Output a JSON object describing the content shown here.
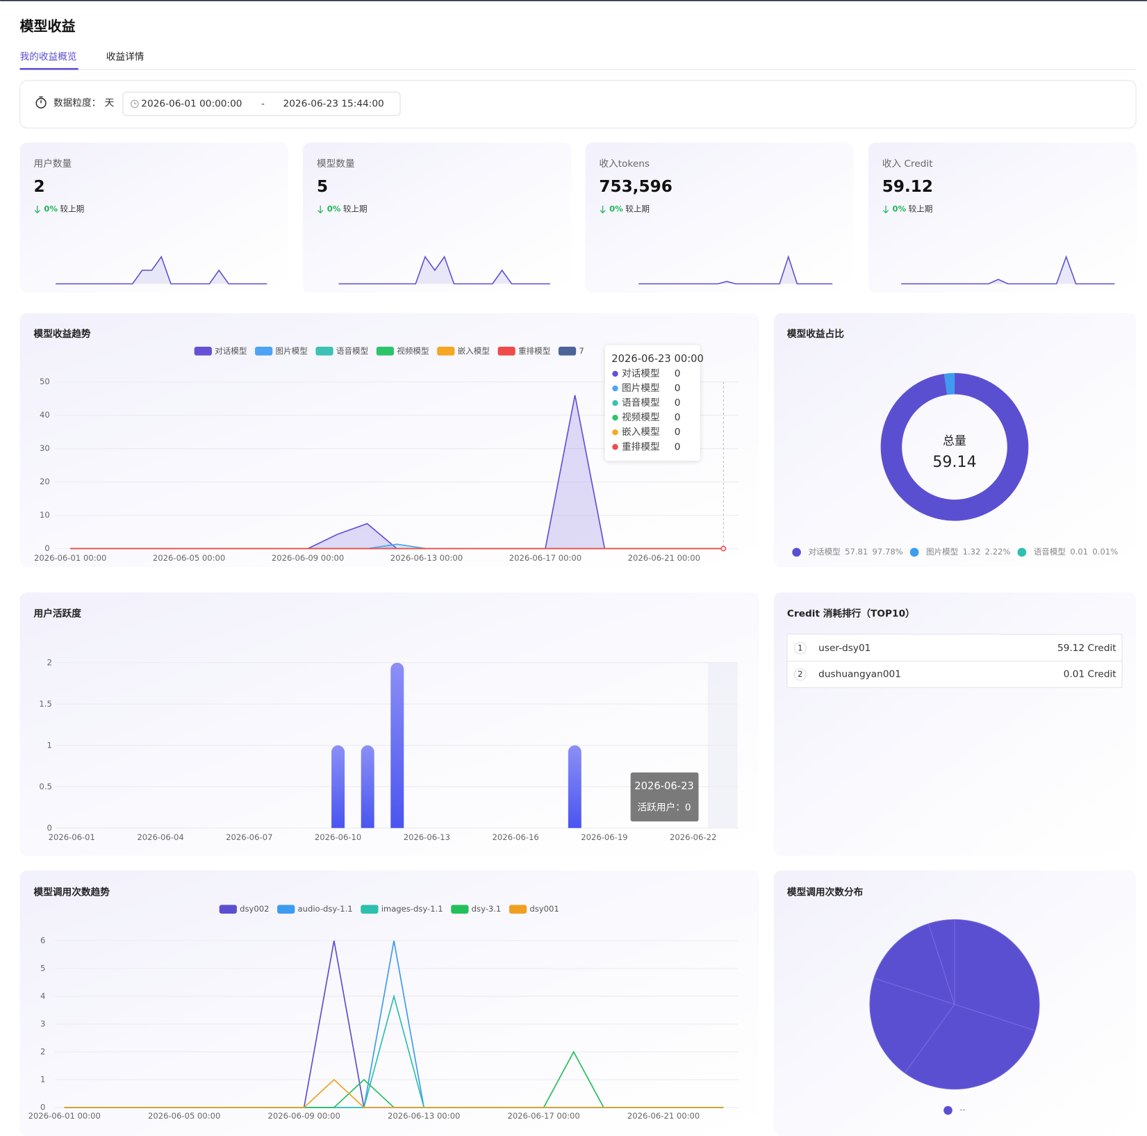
{
  "header": {
    "title": "模型收益",
    "tabs": [
      "我的收益概览",
      "收益详情"
    ]
  },
  "filter": {
    "label": "数据粒度：",
    "granularity": "天",
    "start": "2026-06-01 00:00:00",
    "separator": "-",
    "end": "2026-06-23 15:44:00"
  },
  "stats": [
    {
      "label": "用户数量",
      "value": "2",
      "change": "0%",
      "compare": "较上期"
    },
    {
      "label": "模型数量",
      "value": "5",
      "change": "0%",
      "compare": "较上期"
    },
    {
      "label": "收入tokens",
      "value": "753,596",
      "change": "0%",
      "compare": "较上期"
    },
    {
      "label": "收入 Credit",
      "value": "59.12",
      "change": "0%",
      "compare": "较上期"
    }
  ],
  "ranking": {
    "title": "Credit 消耗排行（TOP10）",
    "rows": [
      [
        "1",
        "user-dsy01",
        "59.12 Credit"
      ],
      [
        "2",
        "dushuangyan001",
        "0.01 Credit"
      ]
    ]
  },
  "chart_data": [
    {
      "type": "sparkline",
      "color": "#5b4fd1",
      "values": [
        0,
        0,
        0,
        0,
        0,
        0,
        0,
        0,
        0,
        1,
        1,
        2,
        0,
        0,
        0,
        0,
        0,
        1,
        0,
        0,
        0,
        0,
        0
      ]
    },
    {
      "type": "sparkline",
      "color": "#5b4fd1",
      "values": [
        0,
        0,
        0,
        0,
        0,
        0,
        0,
        0,
        0,
        2,
        1,
        2,
        0,
        0,
        0,
        0,
        0,
        1,
        0,
        0,
        0,
        0,
        0
      ]
    },
    {
      "type": "sparkline",
      "color": "#5b4fd1",
      "values": [
        0,
        0,
        0,
        0,
        0,
        0,
        0,
        0,
        0,
        0,
        60000,
        0,
        0,
        0,
        0,
        0,
        0,
        693596,
        0,
        0,
        0,
        0,
        0
      ]
    },
    {
      "type": "sparkline",
      "color": "#5b4fd1",
      "values": [
        0,
        0,
        0,
        0,
        0,
        0,
        0,
        0,
        0,
        0,
        7.5,
        0,
        0,
        0,
        0,
        0,
        0,
        46,
        0,
        0,
        0,
        0,
        0
      ]
    },
    {
      "type": "line",
      "title": "模型收益趋势",
      "area": true,
      "categories": [
        "2026-06-01 00:00",
        null,
        null,
        null,
        "2026-06-05 00:00",
        null,
        null,
        null,
        "2026-06-09 00:00",
        null,
        null,
        null,
        "2026-06-13 00:00",
        null,
        null,
        null,
        "2026-06-17 00:00",
        null,
        null,
        null,
        "2026-06-21 00:00",
        null,
        "2026-06-23 00:00"
      ],
      "series": [
        {
          "name": "对话模型",
          "color": "#6451d6",
          "values": [
            0,
            0,
            0,
            0,
            0,
            0,
            0,
            0,
            0,
            4.3,
            7.5,
            0,
            0,
            0,
            0,
            0,
            0,
            46.01,
            0,
            0,
            0,
            0,
            0
          ]
        },
        {
          "name": "图片模型",
          "color": "#4ea3f5",
          "values": [
            0,
            0,
            0,
            0,
            0,
            0,
            0,
            0,
            0,
            0,
            0,
            1.32,
            0,
            0,
            0,
            0,
            0,
            0,
            0,
            0,
            0,
            0,
            0
          ]
        },
        {
          "name": "语音模型",
          "color": "#3cc2b4",
          "values": [
            0,
            0,
            0,
            0,
            0,
            0,
            0,
            0,
            0,
            0,
            0.01,
            0,
            0,
            0,
            0,
            0,
            0,
            0,
            0,
            0,
            0,
            0,
            0
          ]
        },
        {
          "name": "视频模型",
          "color": "#2cc46a",
          "values": [
            0,
            0,
            0,
            0,
            0,
            0,
            0,
            0,
            0,
            0,
            0,
            0,
            0,
            0,
            0,
            0,
            0,
            0,
            0,
            0,
            0,
            0,
            0
          ]
        },
        {
          "name": "嵌入模型",
          "color": "#f5a623",
          "values": [
            0,
            0,
            0,
            0,
            0,
            0,
            0,
            0,
            0,
            0,
            0,
            0,
            0,
            0,
            0,
            0,
            0,
            0,
            0,
            0,
            0,
            0,
            0
          ]
        },
        {
          "name": "重排模型",
          "color": "#ef4b4b",
          "values": [
            0,
            0,
            0,
            0,
            0,
            0,
            0,
            0,
            0,
            0,
            0,
            0,
            0,
            0,
            0,
            0,
            0,
            0,
            0,
            0,
            0,
            0,
            0
          ]
        },
        {
          "name": "7",
          "color": "#4b6598",
          "values": [
            null,
            null,
            null,
            null,
            null,
            null,
            null,
            null,
            null,
            null,
            null,
            null,
            null,
            null,
            null,
            null,
            null,
            null,
            null,
            null,
            null,
            null,
            null
          ]
        }
      ],
      "ylim": [
        0,
        50
      ],
      "yticks": [
        0,
        10,
        20,
        30,
        40,
        50
      ],
      "grid": true
    },
    {
      "type": "donut",
      "title": "模型收益占比",
      "total_label": "总量",
      "total": 59.14,
      "categories": [
        "对话模型",
        "图片模型",
        "语音模型"
      ],
      "values": [
        57.81,
        1.32,
        0.01
      ],
      "percents": [
        97.78,
        2.22,
        0.01
      ],
      "percent_labels": [
        "97.78%",
        "2.22%",
        "0.01%"
      ],
      "colors": [
        "#5b4fd1",
        "#3d9bf0",
        "#2fbfae"
      ]
    },
    {
      "type": "bar",
      "title": "用户活跃度",
      "categories": [
        "2026-06-01",
        null,
        null,
        "2026-06-04",
        null,
        null,
        "2026-06-07",
        null,
        null,
        "2026-06-10",
        null,
        null,
        "2026-06-13",
        null,
        null,
        "2026-06-16",
        null,
        null,
        "2026-06-19",
        null,
        null,
        "2026-06-22",
        "2026-06-23"
      ],
      "series": [
        {
          "name": "活跃用户",
          "color": "#5560f2",
          "values": [
            0,
            0,
            0,
            0,
            0,
            0,
            0,
            0,
            0,
            1,
            1,
            2,
            0,
            0,
            0,
            0,
            0,
            1,
            0,
            0,
            0,
            0,
            0
          ]
        }
      ],
      "tooltip_separator": "：",
      "ylim": [
        0,
        2
      ],
      "yticks": [
        0,
        0.5,
        1,
        1.5,
        2
      ],
      "grid": true
    },
    {
      "type": "line",
      "title": "模型调用次数趋势",
      "area": false,
      "categories": [
        "2026-06-01 00:00",
        null,
        null,
        null,
        "2026-06-05 00:00",
        null,
        null,
        null,
        "2026-06-09 00:00",
        null,
        null,
        null,
        "2026-06-13 00:00",
        null,
        null,
        null,
        "2026-06-17 00:00",
        null,
        null,
        null,
        "2026-06-21 00:00",
        null,
        null
      ],
      "series": [
        {
          "name": "dsy002",
          "color": "#5b4fd1",
          "values": [
            0,
            0,
            0,
            0,
            0,
            0,
            0,
            0,
            0,
            6,
            0,
            0,
            0,
            0,
            0,
            0,
            0,
            0,
            0,
            0,
            0,
            0,
            0
          ]
        },
        {
          "name": "audio-dsy-1.1",
          "color": "#3d9bf0",
          "values": [
            0,
            0,
            0,
            0,
            0,
            0,
            0,
            0,
            0,
            0,
            0,
            6,
            0,
            0,
            0,
            0,
            0,
            0,
            0,
            0,
            0,
            0,
            0
          ]
        },
        {
          "name": "images-dsy-1.1",
          "color": "#2fbfae",
          "values": [
            0,
            0,
            0,
            0,
            0,
            0,
            0,
            0,
            0,
            0,
            0,
            4,
            0,
            0,
            0,
            0,
            0,
            0,
            0,
            0,
            0,
            0,
            0
          ]
        },
        {
          "name": "dsy-3.1",
          "color": "#22c05c",
          "values": [
            0,
            0,
            0,
            0,
            0,
            0,
            0,
            0,
            0,
            0,
            1,
            0,
            0,
            0,
            0,
            0,
            0,
            2,
            0,
            0,
            0,
            0,
            0
          ]
        },
        {
          "name": "dsy001",
          "color": "#f0a020",
          "values": [
            0,
            0,
            0,
            0,
            0,
            0,
            0,
            0,
            0,
            1,
            0,
            0,
            0,
            0,
            0,
            0,
            0,
            0,
            0,
            0,
            0,
            0,
            0
          ]
        }
      ],
      "ylim": [
        0,
        6
      ],
      "yticks": [
        0,
        1,
        2,
        3,
        4,
        5,
        6
      ],
      "grid": true
    },
    {
      "type": "pie",
      "title": "模型调用次数分布",
      "values": [
        6,
        6,
        4,
        3,
        1
      ],
      "legend": "--",
      "color": "#5b4fd1"
    }
  ]
}
